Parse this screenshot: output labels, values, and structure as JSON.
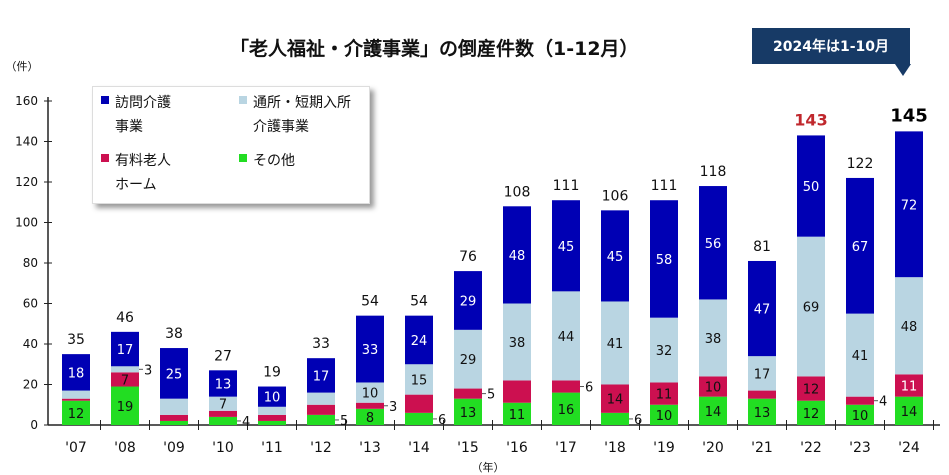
{
  "chart_data": {
    "type": "bar",
    "stacked": true,
    "title": "「老人福祉・介護事業」の倒産件数（1-12月）",
    "annotation": "2024年は1-10月",
    "ylabel": "（件）",
    "xlabel": "（年）",
    "ylim": [
      0,
      160
    ],
    "yticks": [
      0,
      20,
      40,
      60,
      80,
      100,
      120,
      140,
      160
    ],
    "grid": false,
    "legend_position": "top-left",
    "categories": [
      "'07",
      "'08",
      "'09",
      "'10",
      "'11",
      "'12",
      "'13",
      "'14",
      "'15",
      "'16",
      "'17",
      "'18",
      "'19",
      "'20",
      "'21",
      "'22",
      "'23",
      "'24"
    ],
    "totals": [
      35,
      46,
      38,
      27,
      19,
      33,
      54,
      54,
      76,
      108,
      111,
      106,
      111,
      118,
      81,
      143,
      122,
      145
    ],
    "highlight_totals": {
      "'22": "#c0282d",
      "'24": "#000000"
    },
    "series": [
      {
        "name": "その他",
        "color": "#22dd22",
        "values": [
          12,
          19,
          2,
          4,
          2,
          5,
          8,
          6,
          13,
          11,
          16,
          6,
          10,
          14,
          13,
          12,
          10,
          14
        ],
        "labels": [
          12,
          19,
          null,
          4,
          null,
          5,
          8,
          6,
          13,
          11,
          16,
          6,
          10,
          14,
          13,
          12,
          10,
          14
        ]
      },
      {
        "name": "有料老人ホーム",
        "color": "#cc1050",
        "values": [
          1,
          7,
          3,
          3,
          3,
          5,
          3,
          9,
          5,
          11,
          6,
          14,
          11,
          10,
          4,
          12,
          4,
          11
        ],
        "labels": [
          null,
          7,
          null,
          null,
          null,
          null,
          3,
          null,
          5,
          null,
          6,
          14,
          11,
          10,
          null,
          12,
          4,
          11
        ]
      },
      {
        "name": "通所・短期入所介護事業",
        "color": "#b9d5e2",
        "values": [
          4,
          3,
          8,
          7,
          4,
          6,
          10,
          15,
          29,
          38,
          44,
          41,
          32,
          38,
          17,
          69,
          41,
          48
        ],
        "labels": [
          null,
          3,
          null,
          7,
          null,
          null,
          10,
          15,
          29,
          38,
          44,
          41,
          32,
          38,
          17,
          69,
          41,
          48
        ]
      },
      {
        "name": "訪問介護事業",
        "color": "#0000b4",
        "values": [
          18,
          17,
          25,
          13,
          10,
          17,
          33,
          24,
          29,
          48,
          45,
          45,
          58,
          56,
          47,
          50,
          67,
          72
        ],
        "labels": [
          18,
          17,
          25,
          13,
          10,
          17,
          33,
          24,
          29,
          48,
          45,
          45,
          58,
          56,
          47,
          50,
          67,
          72
        ]
      }
    ]
  },
  "legend": {
    "visiting_line1": "訪問介護",
    "visiting_line2": "事業",
    "day_line1": "通所・短期入所",
    "day_line2": "介護事業",
    "paid_line1": "有料老人",
    "paid_line2": "ホーム",
    "other": "その他"
  }
}
